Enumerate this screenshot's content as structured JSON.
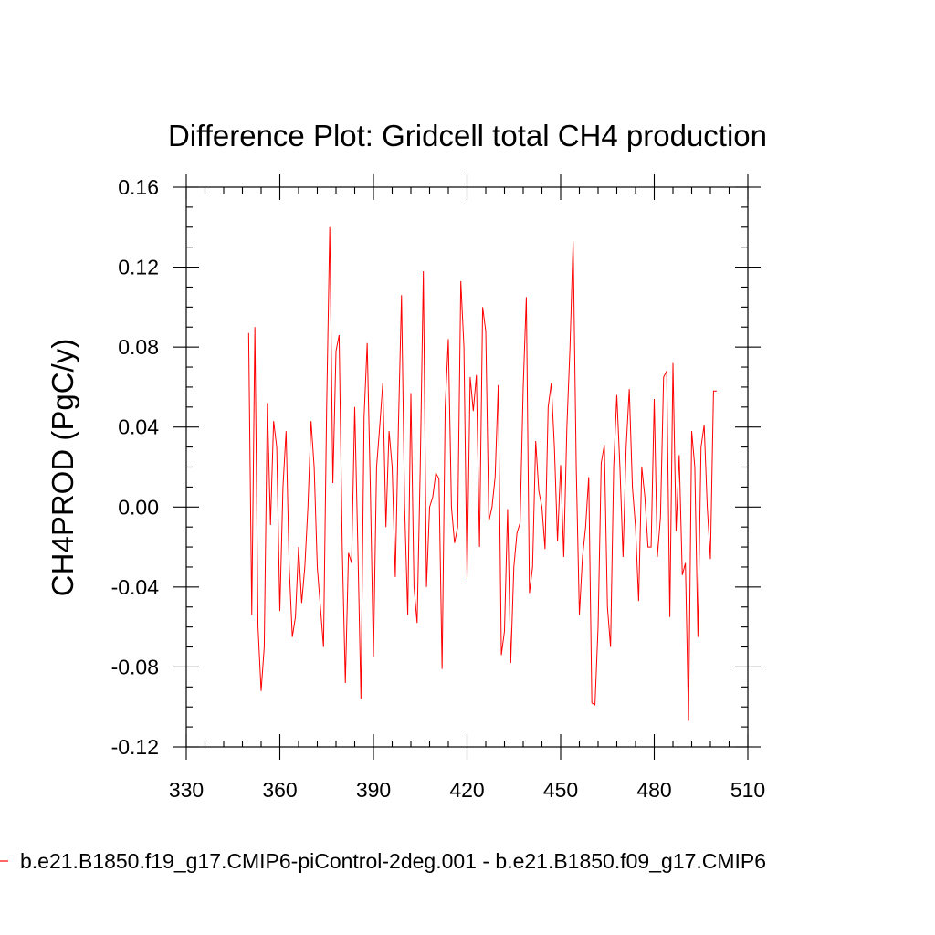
{
  "chart_data": {
    "type": "line",
    "title": "Difference Plot: Gridcell total CH4 production",
    "xlabel": "",
    "ylabel": "CH4PROD  (PgC/y)",
    "xlim": [
      330,
      510
    ],
    "ylim": [
      -0.12,
      0.16
    ],
    "x_ticks": [
      330,
      360,
      390,
      420,
      450,
      480,
      510
    ],
    "x_tick_labels": [
      "330",
      "360",
      "390",
      "420",
      "450",
      "480",
      "510"
    ],
    "y_ticks": [
      -0.12,
      -0.08,
      -0.04,
      0.0,
      0.04,
      0.08,
      0.12,
      0.16
    ],
    "y_tick_labels": [
      "-0.12",
      "-0.08",
      "-0.04",
      "0.00",
      "0.04",
      "0.08",
      "0.12",
      "0.16"
    ],
    "grid": false,
    "legend_position": "bottom",
    "series": [
      {
        "name": "b.e21.B1850.f19_g17.CMIP6-piControl-2deg.001 - b.e21.B1850.f09_g17.CMIP6",
        "color": "#ff0000",
        "x_start": 350,
        "x_step": 1,
        "values": [
          0.087,
          -0.054,
          0.09,
          -0.06,
          -0.092,
          -0.07,
          0.052,
          -0.009,
          0.043,
          0.03,
          -0.052,
          0.01,
          0.038,
          -0.03,
          -0.065,
          -0.055,
          -0.02,
          -0.048,
          -0.03,
          0.0,
          0.043,
          0.02,
          -0.03,
          -0.05,
          -0.07,
          0.05,
          0.14,
          0.012,
          0.078,
          0.086,
          -0.02,
          -0.088,
          -0.023,
          -0.028,
          0.05,
          -0.02,
          -0.096,
          0.045,
          0.082,
          0.01,
          -0.075,
          0.02,
          0.04,
          0.062,
          -0.01,
          0.038,
          0.02,
          -0.035,
          0.04,
          0.106,
          0.0,
          -0.054,
          0.057,
          -0.04,
          -0.058,
          0.02,
          0.118,
          -0.04,
          0.0,
          0.005,
          0.017,
          0.014,
          -0.081,
          0.05,
          0.084,
          0.0,
          -0.018,
          -0.01,
          0.113,
          0.08,
          -0.036,
          0.065,
          0.048,
          0.066,
          -0.02,
          0.1,
          0.088,
          -0.007,
          0.0,
          0.015,
          0.061,
          -0.074,
          -0.062,
          -0.001,
          -0.078,
          -0.03,
          -0.013,
          -0.008,
          0.06,
          0.105,
          -0.043,
          -0.03,
          0.033,
          0.008,
          0.0,
          -0.021,
          0.05,
          0.062,
          0.03,
          -0.017,
          0.021,
          -0.025,
          0.04,
          0.08,
          0.133,
          0.02,
          -0.054,
          -0.025,
          -0.01,
          0.015,
          -0.098,
          -0.099,
          -0.06,
          0.022,
          0.031,
          -0.05,
          -0.07,
          0.02,
          0.056,
          0.02,
          -0.025,
          0.03,
          0.059,
          0.01,
          -0.01,
          -0.047,
          0.02,
          0.005,
          -0.02,
          -0.02,
          0.054,
          -0.025,
          -0.005,
          0.065,
          0.068,
          -0.055,
          0.072,
          -0.012,
          0.026,
          -0.034,
          -0.028,
          -0.107,
          0.038,
          0.02,
          -0.065,
          0.03,
          0.041,
          0.0,
          -0.026,
          0.058,
          0.058
        ]
      }
    ]
  }
}
